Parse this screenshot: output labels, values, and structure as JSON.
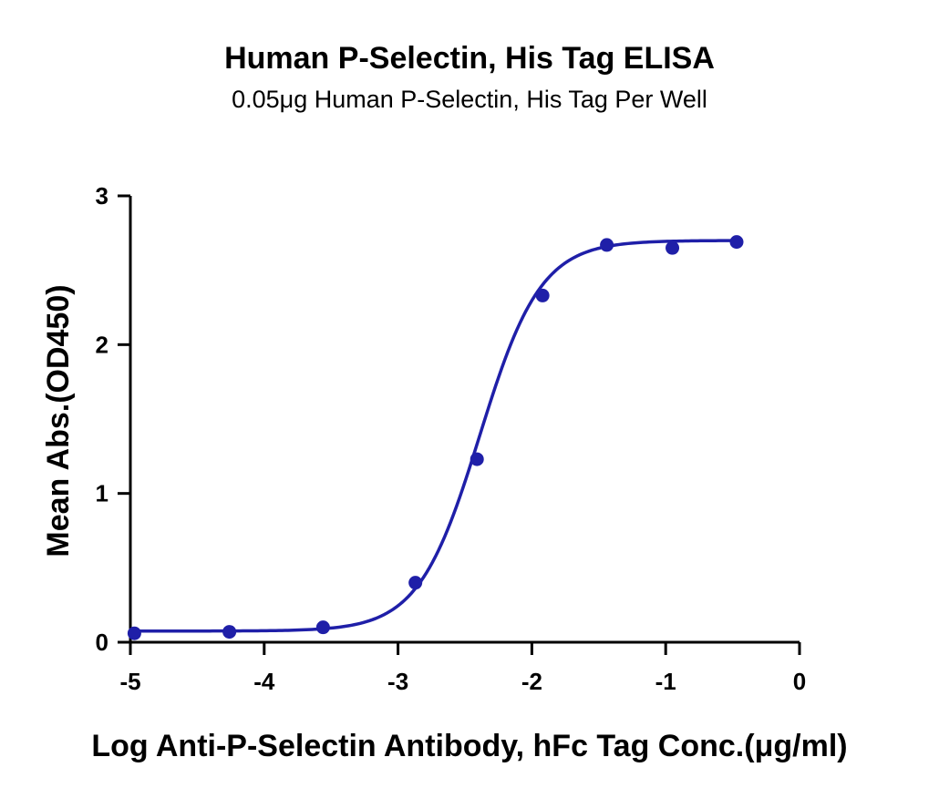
{
  "chart_data": {
    "type": "scatter",
    "title": "Human P-Selectin, His Tag ELISA",
    "subtitle": "0.05μg Human P-Selectin, His Tag Per Well",
    "xlabel": "Log Anti-P-Selectin Antibody, hFc Tag Conc.(μg/ml)",
    "ylabel": "Mean Abs.(OD450)",
    "xlim": [
      -5,
      0
    ],
    "ylim": [
      0,
      3
    ],
    "x_ticks": [
      "-5",
      "-4",
      "-3",
      "-2",
      "-1",
      "0"
    ],
    "y_ticks": [
      "0",
      "1",
      "2",
      "3"
    ],
    "grid": false,
    "legend": "none",
    "color": "#1f1fa8",
    "series": [
      {
        "x": [
          -4.97,
          -4.26,
          -3.56,
          -2.87,
          -2.41,
          -1.92,
          -1.44,
          -0.95,
          -0.47
        ],
        "y": [
          0.06,
          0.07,
          0.1,
          0.4,
          1.23,
          2.33,
          2.67,
          2.65,
          2.69
        ]
      }
    ],
    "fit_curve": {
      "bottom": 0.075,
      "top": 2.7,
      "log_ec50": -2.39,
      "hill_slope": 1.9
    }
  }
}
